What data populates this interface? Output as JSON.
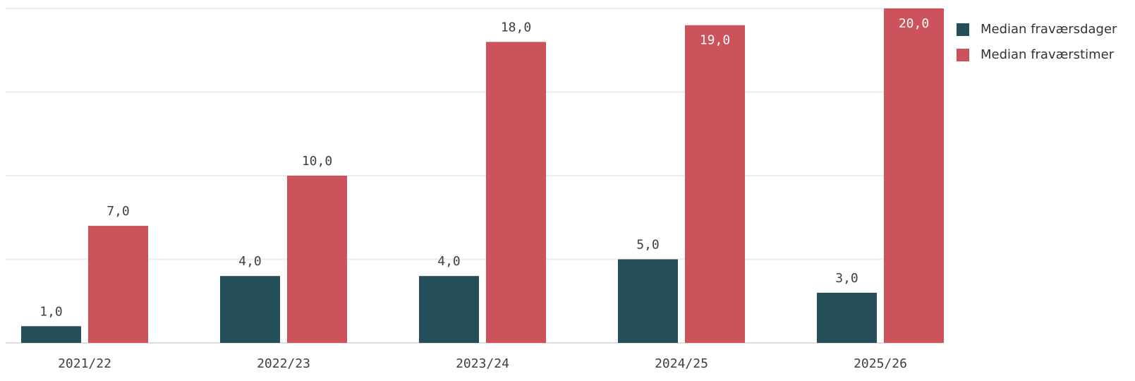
{
  "chart_data": {
    "type": "bar",
    "categories": [
      "2021/22",
      "2022/23",
      "2023/24",
      "2024/25",
      "2025/26"
    ],
    "series": [
      {
        "name": "Median fraværsdager",
        "color": "#244f5a",
        "values": [
          1,
          4,
          4,
          5,
          3
        ],
        "value_labels": [
          "1,0",
          "4,0",
          "4,0",
          "5,0",
          "3,0"
        ]
      },
      {
        "name": "Median fraværstimer",
        "color": "#cc525c",
        "values": [
          7,
          10,
          18,
          19,
          20
        ],
        "value_labels": [
          "7,0",
          "10,0",
          "18,0",
          "19,0",
          "20,0"
        ]
      }
    ],
    "ylim": [
      0,
      20
    ],
    "yticks": [
      0,
      5,
      10,
      15,
      20
    ],
    "grid": true,
    "legend": "top-right"
  }
}
